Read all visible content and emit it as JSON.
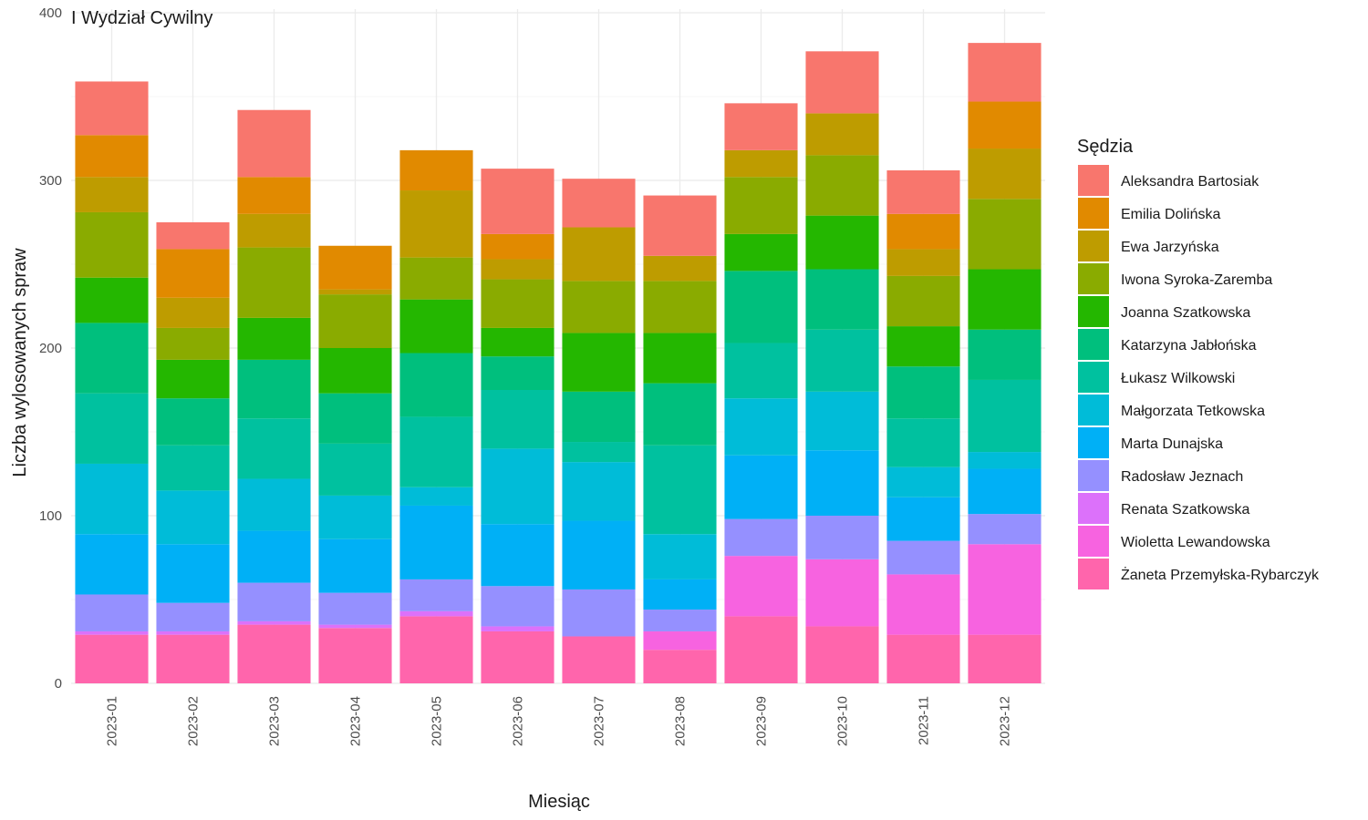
{
  "chart_data": {
    "type": "bar",
    "stacked": true,
    "title": "I Wydział Cywilny",
    "xlabel": "Miesiąc",
    "ylabel": "Liczba wylosowanych spraw",
    "ylim": [
      0,
      400
    ],
    "yticks": [
      0,
      100,
      200,
      300,
      400
    ],
    "grid": true,
    "legend": {
      "title": "Sędzia",
      "position": "right"
    },
    "categories": [
      "2023-01",
      "2023-02",
      "2023-03",
      "2023-04",
      "2023-05",
      "2023-06",
      "2023-07",
      "2023-08",
      "2023-09",
      "2023-10",
      "2023-11",
      "2023-12"
    ],
    "series": [
      {
        "name": "Żaneta Przemyłska-Rybarczyk",
        "color": "#FF65AC",
        "values": [
          29,
          29,
          35,
          33,
          40,
          31,
          28,
          20,
          40,
          34,
          29,
          29
        ]
      },
      {
        "name": "Wioletta Lewandowska",
        "color": "#F763E0",
        "values": [
          0,
          0,
          0,
          0,
          0,
          0,
          0,
          11,
          36,
          40,
          36,
          54
        ]
      },
      {
        "name": "Renata Szatkowska",
        "color": "#DC71FA",
        "values": [
          2,
          2,
          2,
          2,
          3,
          3,
          0,
          0,
          0,
          0,
          0,
          0
        ]
      },
      {
        "name": "Radosław Jeznach",
        "color": "#9590FF",
        "values": [
          22,
          17,
          23,
          19,
          19,
          24,
          28,
          13,
          22,
          26,
          20,
          18
        ]
      },
      {
        "name": "Marta Dunajska",
        "color": "#00B0F6",
        "values": [
          36,
          35,
          31,
          32,
          44,
          37,
          41,
          18,
          38,
          39,
          26,
          27
        ]
      },
      {
        "name": "Małgorzata Tetkowska",
        "color": "#00BCD8",
        "values": [
          42,
          32,
          31,
          26,
          11,
          45,
          35,
          27,
          34,
          35,
          18,
          10
        ]
      },
      {
        "name": "Łukasz Wilkowski",
        "color": "#00C19F",
        "values": [
          42,
          27,
          36,
          31,
          42,
          35,
          12,
          53,
          33,
          37,
          29,
          43
        ]
      },
      {
        "name": "Katarzyna Jabłońska",
        "color": "#00BF7D",
        "values": [
          42,
          28,
          35,
          30,
          38,
          20,
          30,
          37,
          43,
          36,
          31,
          30
        ]
      },
      {
        "name": "Joanna Szatkowska",
        "color": "#24B700",
        "values": [
          27,
          23,
          25,
          27,
          32,
          17,
          35,
          30,
          22,
          32,
          24,
          36
        ]
      },
      {
        "name": "Iwona Syroka-Zaremba",
        "color": "#8AAB00",
        "values": [
          39,
          19,
          42,
          32,
          25,
          29,
          31,
          31,
          34,
          36,
          30,
          42
        ]
      },
      {
        "name": "Ewa Jarzyńska",
        "color": "#BE9C00",
        "values": [
          21,
          18,
          20,
          3,
          40,
          12,
          32,
          15,
          16,
          25,
          16,
          30
        ]
      },
      {
        "name": "Emilia Dolińska",
        "color": "#E18A00",
        "values": [
          25,
          29,
          22,
          26,
          24,
          15,
          0,
          0,
          0,
          0,
          21,
          28
        ]
      },
      {
        "name": "Aleksandra Bartosiak",
        "color": "#F8766D",
        "values": [
          32,
          16,
          40,
          0,
          0,
          39,
          29,
          36,
          28,
          37,
          26,
          35
        ]
      }
    ]
  }
}
